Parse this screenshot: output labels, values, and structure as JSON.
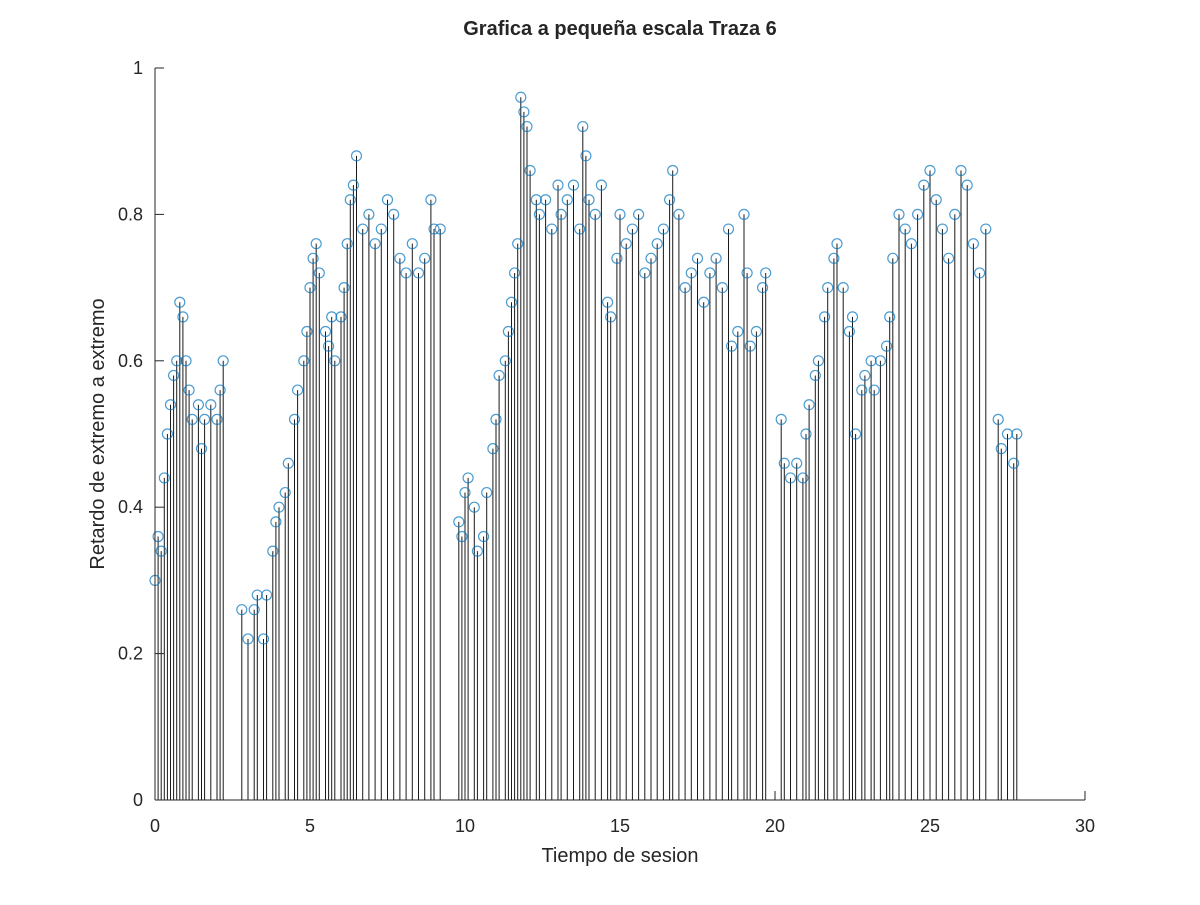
{
  "chart_data": {
    "type": "stem",
    "title": "Grafica a pequeña escala Traza 6",
    "x_label": "Tiempo de sesion",
    "y_label": "Retardo de extremo a extremo",
    "xlim": [
      0,
      30
    ],
    "ylim": [
      0,
      1
    ],
    "xticks": [
      0,
      5,
      10,
      15,
      20,
      25,
      30
    ],
    "yticks": [
      0,
      0.2,
      0.4,
      0.6,
      0.8,
      1
    ],
    "stem_color": "#1a1a1a",
    "marker_color": "#0072bd",
    "x": [
      0.0,
      0.1,
      0.2,
      0.3,
      0.4,
      0.5,
      0.6,
      0.7,
      0.8,
      0.9,
      1.0,
      1.1,
      1.2,
      1.4,
      1.5,
      1.6,
      1.8,
      2.0,
      2.1,
      2.2,
      2.8,
      3.0,
      3.2,
      3.3,
      3.5,
      3.6,
      3.8,
      3.9,
      4.0,
      4.2,
      4.3,
      4.5,
      4.6,
      4.8,
      4.9,
      5.0,
      5.1,
      5.2,
      5.3,
      5.5,
      5.6,
      5.7,
      5.8,
      6.0,
      6.1,
      6.2,
      6.3,
      6.4,
      6.5,
      6.7,
      6.9,
      7.1,
      7.3,
      7.5,
      7.7,
      7.9,
      8.1,
      8.3,
      8.5,
      8.7,
      8.9,
      9.0,
      9.2,
      9.8,
      9.9,
      10.0,
      10.1,
      10.3,
      10.4,
      10.6,
      10.7,
      10.9,
      11.0,
      11.1,
      11.3,
      11.4,
      11.5,
      11.6,
      11.7,
      11.8,
      11.9,
      12.0,
      12.1,
      12.3,
      12.4,
      12.6,
      12.8,
      13.0,
      13.1,
      13.3,
      13.5,
      13.7,
      13.8,
      13.9,
      14.0,
      14.2,
      14.4,
      14.6,
      14.7,
      14.9,
      15.0,
      15.2,
      15.4,
      15.6,
      15.8,
      16.0,
      16.2,
      16.4,
      16.6,
      16.7,
      16.9,
      17.1,
      17.3,
      17.5,
      17.7,
      17.9,
      18.1,
      18.3,
      18.5,
      18.6,
      18.8,
      19.0,
      19.1,
      19.2,
      19.4,
      19.6,
      19.7,
      20.2,
      20.3,
      20.5,
      20.7,
      20.9,
      21.0,
      21.1,
      21.3,
      21.4,
      21.6,
      21.7,
      21.9,
      22.0,
      22.2,
      22.4,
      22.5,
      22.6,
      22.8,
      22.9,
      23.1,
      23.2,
      23.4,
      23.6,
      23.7,
      23.8,
      24.0,
      24.2,
      24.4,
      24.6,
      24.8,
      25.0,
      25.2,
      25.4,
      25.6,
      25.8,
      26.0,
      26.2,
      26.4,
      26.6,
      26.8,
      27.2,
      27.3,
      27.5,
      27.7,
      27.8
    ],
    "values": [
      0.3,
      0.36,
      0.34,
      0.44,
      0.5,
      0.54,
      0.58,
      0.6,
      0.68,
      0.66,
      0.6,
      0.56,
      0.52,
      0.54,
      0.48,
      0.52,
      0.54,
      0.52,
      0.56,
      0.6,
      0.26,
      0.22,
      0.26,
      0.28,
      0.22,
      0.28,
      0.34,
      0.38,
      0.4,
      0.42,
      0.46,
      0.52,
      0.56,
      0.6,
      0.64,
      0.7,
      0.74,
      0.76,
      0.72,
      0.64,
      0.62,
      0.66,
      0.6,
      0.66,
      0.7,
      0.76,
      0.82,
      0.84,
      0.88,
      0.78,
      0.8,
      0.76,
      0.78,
      0.82,
      0.8,
      0.74,
      0.72,
      0.76,
      0.72,
      0.74,
      0.82,
      0.78,
      0.78,
      0.38,
      0.36,
      0.42,
      0.44,
      0.4,
      0.34,
      0.36,
      0.42,
      0.48,
      0.52,
      0.58,
      0.6,
      0.64,
      0.68,
      0.72,
      0.76,
      0.96,
      0.94,
      0.92,
      0.86,
      0.82,
      0.8,
      0.82,
      0.78,
      0.84,
      0.8,
      0.82,
      0.84,
      0.78,
      0.92,
      0.88,
      0.82,
      0.8,
      0.84,
      0.68,
      0.66,
      0.74,
      0.8,
      0.76,
      0.78,
      0.8,
      0.72,
      0.74,
      0.76,
      0.78,
      0.82,
      0.86,
      0.8,
      0.7,
      0.72,
      0.74,
      0.68,
      0.72,
      0.74,
      0.7,
      0.78,
      0.62,
      0.64,
      0.8,
      0.72,
      0.62,
      0.64,
      0.7,
      0.72,
      0.52,
      0.46,
      0.44,
      0.46,
      0.44,
      0.5,
      0.54,
      0.58,
      0.6,
      0.66,
      0.7,
      0.74,
      0.76,
      0.7,
      0.64,
      0.66,
      0.5,
      0.56,
      0.58,
      0.6,
      0.56,
      0.6,
      0.62,
      0.66,
      0.74,
      0.8,
      0.78,
      0.76,
      0.8,
      0.84,
      0.86,
      0.82,
      0.78,
      0.74,
      0.8,
      0.86,
      0.84,
      0.76,
      0.72,
      0.78,
      0.52,
      0.48,
      0.5,
      0.46,
      0.5
    ]
  }
}
